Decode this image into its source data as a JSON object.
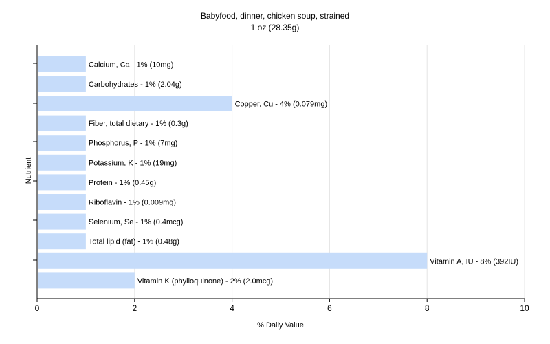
{
  "chart_data": {
    "type": "bar",
    "orientation": "horizontal",
    "title": "Babyfood, dinner, chicken soup, strained",
    "subtitle": "1 oz (28.35g)",
    "xlabel": "% Daily Value",
    "ylabel": "Nutrient",
    "xlim": [
      0,
      10
    ],
    "xticks": [
      0,
      2,
      4,
      6,
      8,
      10
    ],
    "grid": "vertical",
    "bar_color": "#c6dcfa",
    "categories": [
      "Calcium, Ca",
      "Carbohydrates",
      "Copper, Cu",
      "Fiber, total dietary",
      "Phosphorus, P",
      "Potassium, K",
      "Protein",
      "Riboflavin",
      "Selenium, Se",
      "Total lipid (fat)",
      "Vitamin A, IU",
      "Vitamin K (phylloquinone)"
    ],
    "values": [
      1,
      1,
      4,
      1,
      1,
      1,
      1,
      1,
      1,
      1,
      8,
      2
    ],
    "labels": [
      "Calcium, Ca - 1% (10mg)",
      "Carbohydrates - 1% (2.04g)",
      "Copper, Cu - 4% (0.079mg)",
      "Fiber, total dietary - 1% (0.3g)",
      "Phosphorus, P - 1% (7mg)",
      "Potassium, K - 1% (19mg)",
      "Protein - 1% (0.45g)",
      "Riboflavin - 1% (0.009mg)",
      "Selenium, Se - 1% (0.4mcg)",
      "Total lipid (fat) - 1% (0.48g)",
      "Vitamin A, IU - 8% (392IU)",
      "Vitamin K (phylloquinone) - 2% (2.0mcg)"
    ]
  }
}
